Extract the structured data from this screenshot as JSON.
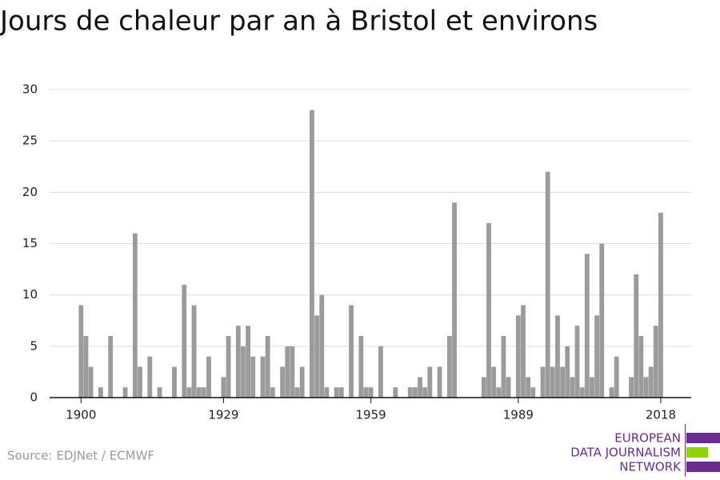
{
  "chart_data": {
    "type": "bar",
    "title": "Jours de chaleur par an à Bristol et environs",
    "x": [
      1900,
      1901,
      1902,
      1903,
      1904,
      1905,
      1906,
      1907,
      1908,
      1909,
      1910,
      1911,
      1912,
      1913,
      1914,
      1915,
      1916,
      1917,
      1918,
      1919,
      1920,
      1921,
      1922,
      1923,
      1924,
      1925,
      1926,
      1927,
      1928,
      1929,
      1930,
      1931,
      1932,
      1933,
      1934,
      1935,
      1936,
      1937,
      1938,
      1939,
      1940,
      1941,
      1942,
      1943,
      1944,
      1945,
      1946,
      1947,
      1948,
      1949,
      1950,
      1951,
      1952,
      1953,
      1954,
      1955,
      1956,
      1957,
      1958,
      1959,
      1960,
      1961,
      1962,
      1963,
      1964,
      1965,
      1966,
      1967,
      1968,
      1969,
      1970,
      1971,
      1972,
      1973,
      1974,
      1975,
      1976,
      1977,
      1978,
      1979,
      1980,
      1981,
      1982,
      1983,
      1984,
      1985,
      1986,
      1987,
      1988,
      1989,
      1990,
      1991,
      1992,
      1993,
      1994,
      1995,
      1996,
      1997,
      1998,
      1999,
      2000,
      2001,
      2002,
      2003,
      2004,
      2005,
      2006,
      2007,
      2008,
      2009,
      2010,
      2011,
      2012,
      2013,
      2014,
      2015,
      2016,
      2017,
      2018
    ],
    "values": [
      9,
      6,
      3,
      0,
      1,
      0,
      6,
      0,
      0,
      1,
      0,
      16,
      3,
      0,
      4,
      0,
      1,
      0,
      0,
      3,
      0,
      11,
      1,
      9,
      1,
      1,
      4,
      0,
      0,
      2,
      6,
      0,
      7,
      5,
      7,
      4,
      0,
      4,
      6,
      1,
      0,
      3,
      5,
      5,
      1,
      3,
      0,
      28,
      8,
      10,
      1,
      0,
      1,
      1,
      0,
      9,
      0,
      6,
      1,
      1,
      0,
      5,
      0,
      0,
      1,
      0,
      0,
      1,
      1,
      2,
      1,
      3,
      0,
      3,
      0,
      6,
      19,
      0,
      0,
      0,
      0,
      0,
      2,
      17,
      3,
      1,
      6,
      2,
      0,
      8,
      9,
      2,
      1,
      0,
      3,
      22,
      3,
      8,
      3,
      5,
      2,
      7,
      1,
      14,
      2,
      8,
      15,
      0,
      1,
      4,
      0,
      0,
      2,
      12,
      6,
      2,
      3,
      7,
      18
    ],
    "color": "#9b9b9b",
    "xlim": [
      1893.6,
      2024.2
    ],
    "xticks": [
      1900,
      1929,
      1959,
      1989,
      2018
    ],
    "ylim": [
      0,
      30
    ],
    "yticks": [
      0,
      5,
      10,
      15,
      20,
      25,
      30
    ],
    "grid": true
  },
  "source": "Source: EDJNet / ECMWF",
  "logo": [
    "EUROPEAN",
    "DATA JOURNALISM",
    "NETWORK"
  ]
}
